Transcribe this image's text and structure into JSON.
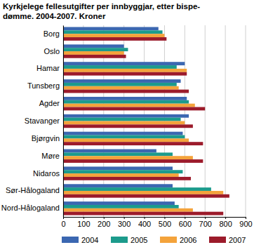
{
  "chart_data": {
    "type": "bar",
    "orientation": "horizontal",
    "title": "Kyrkjelege fellesutgifter per innbyggjar, etter bispe-\ndømme. 2004-2007. Kroner",
    "categories": [
      "Borg",
      "Oslo",
      "Hamar",
      "Tunsberg",
      "Agder",
      "Stavanger",
      "Bjørgvin",
      "Møre",
      "Nidaros",
      "Sør-Hålogaland",
      "Nord-Hålogaland"
    ],
    "series": [
      {
        "name": "2004",
        "color": "#3b67b1",
        "values": [
          470,
          300,
          600,
          580,
          610,
          620,
          590,
          460,
          540,
          540,
          550
        ]
      },
      {
        "name": "2005",
        "color": "#1c9b8c",
        "values": [
          490,
          320,
          560,
          560,
          620,
          580,
          600,
          540,
          590,
          730,
          570
        ]
      },
      {
        "name": "2006",
        "color": "#f4a33b",
        "values": [
          500,
          300,
          610,
          570,
          650,
          600,
          620,
          640,
          570,
          790,
          640
        ]
      },
      {
        "name": "2007",
        "color": "#9c1b2b",
        "values": [
          510,
          310,
          610,
          620,
          700,
          640,
          690,
          690,
          630,
          820,
          790
        ]
      }
    ],
    "xlim": [
      0,
      900
    ],
    "xticks": [
      0,
      100,
      200,
      300,
      400,
      500,
      600,
      700,
      800,
      900
    ],
    "grid": true,
    "legend": "bottom"
  }
}
